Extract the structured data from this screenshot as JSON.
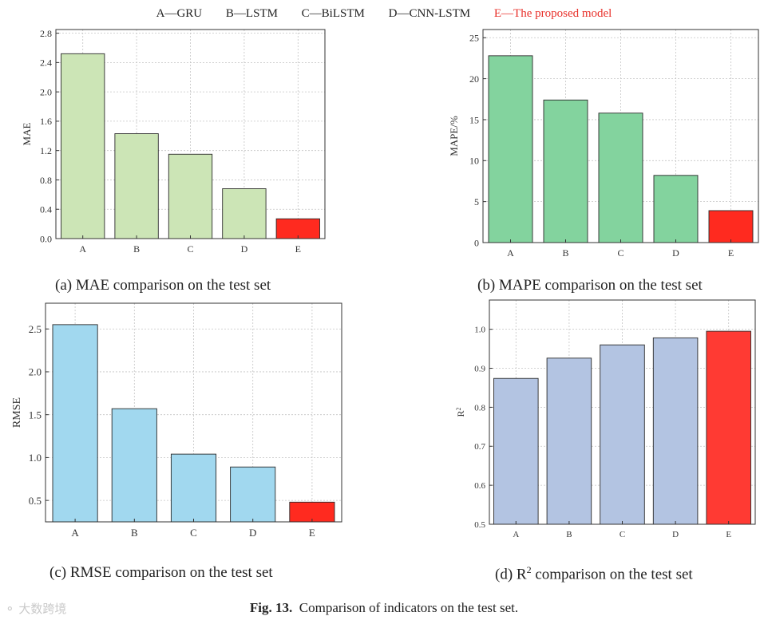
{
  "legend": [
    {
      "text": "A—GRU",
      "color": "#222222"
    },
    {
      "text": "B—LSTM",
      "color": "#222222"
    },
    {
      "text": "C—BiLSTM",
      "color": "#222222"
    },
    {
      "text": "D—CNN-LSTM",
      "color": "#222222"
    },
    {
      "text": "E—The proposed model",
      "color": "#e8302a"
    }
  ],
  "captions": {
    "a": "(a) MAE comparison on the test set",
    "b": "(b) MAPE comparison on the test set",
    "c": "(c) RMSE comparison on the test set",
    "d_prefix": "(d) R",
    "d_sup": "2",
    "d_suffix": " comparison on the test set"
  },
  "figure_caption": {
    "label": "Fig. 13.",
    "text": "Comparison of indicators on the test set."
  },
  "watermark": "大数跨境",
  "chart_data": [
    {
      "id": "mae",
      "type": "bar",
      "title": "",
      "xlabel": "",
      "ylabel": "MAE",
      "categories": [
        "A",
        "B",
        "C",
        "D",
        "E"
      ],
      "values": [
        2.52,
        1.43,
        1.15,
        0.68,
        0.27
      ],
      "ylim": [
        0,
        2.85
      ],
      "yticks": [
        0.0,
        0.4,
        0.8,
        1.2,
        1.6,
        2.0,
        2.4,
        2.8
      ],
      "tick_decimals": 1,
      "grid": true,
      "colors": [
        "#cce5b6",
        "#cce5b6",
        "#cce5b6",
        "#cce5b6",
        "#ff2a1f"
      ]
    },
    {
      "id": "mape",
      "type": "bar",
      "title": "",
      "xlabel": "",
      "ylabel": "MAPE/%",
      "categories": [
        "A",
        "B",
        "C",
        "D",
        "E"
      ],
      "values": [
        22.8,
        17.4,
        15.8,
        8.2,
        3.9
      ],
      "ylim": [
        0,
        26
      ],
      "yticks": [
        0,
        5,
        10,
        15,
        20,
        25
      ],
      "tick_decimals": 0,
      "grid": true,
      "colors": [
        "#83d39e",
        "#83d39e",
        "#83d39e",
        "#83d39e",
        "#ff2a1f"
      ]
    },
    {
      "id": "rmse",
      "type": "bar",
      "title": "",
      "xlabel": "",
      "ylabel": "RMSE",
      "categories": [
        "A",
        "B",
        "C",
        "D",
        "E"
      ],
      "values": [
        2.55,
        1.57,
        1.04,
        0.89,
        0.48
      ],
      "ylim": [
        0.25,
        2.8
      ],
      "yticks": [
        0.5,
        1.0,
        1.5,
        2.0,
        2.5
      ],
      "tick_decimals": 1,
      "grid": true,
      "colors": [
        "#a1d8ef",
        "#a1d8ef",
        "#a1d8ef",
        "#a1d8ef",
        "#ff2a1f"
      ]
    },
    {
      "id": "r2",
      "type": "bar",
      "title": "",
      "xlabel": "",
      "ylabel": "R2",
      "categories": [
        "A",
        "B",
        "C",
        "D",
        "E"
      ],
      "values": [
        0.874,
        0.926,
        0.96,
        0.978,
        0.995
      ],
      "ylim": [
        0.5,
        1.075
      ],
      "yticks": [
        0.5,
        0.6,
        0.7,
        0.8,
        0.9,
        1.0
      ],
      "tick_decimals": 1,
      "grid": true,
      "colors": [
        "#b3c4e2",
        "#b3c4e2",
        "#b3c4e2",
        "#b3c4e2",
        "#ff3a33"
      ]
    }
  ]
}
